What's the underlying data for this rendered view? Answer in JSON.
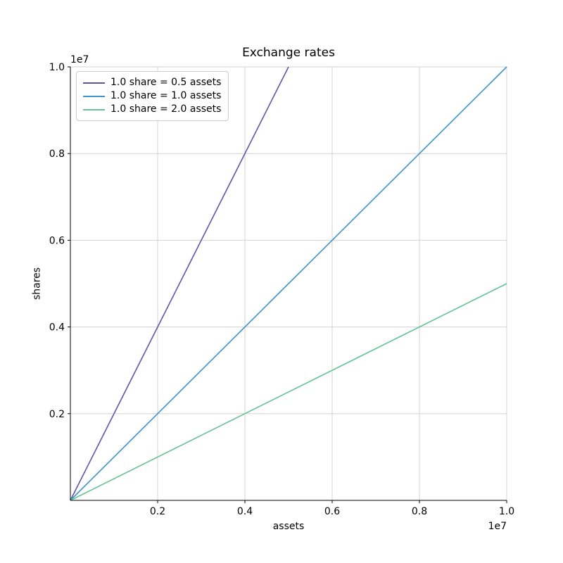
{
  "chart_data": {
    "type": "line",
    "title": "Exchange rates",
    "xlabel": "assets",
    "ylabel": "shares",
    "x_offset_label": "1e7",
    "y_offset_label": "1e7",
    "xlim": [
      0,
      10000000
    ],
    "ylim": [
      0,
      10000000
    ],
    "x_ticks": [
      2000000,
      4000000,
      6000000,
      8000000,
      10000000
    ],
    "x_tick_labels": [
      "0.2",
      "0.4",
      "0.6",
      "0.8",
      "1.0"
    ],
    "y_ticks": [
      2000000,
      4000000,
      6000000,
      8000000,
      10000000
    ],
    "y_tick_labels": [
      "0.2",
      "0.4",
      "0.6",
      "0.8",
      "1.0"
    ],
    "grid": true,
    "legend_position": "upper left",
    "series": [
      {
        "name": "1.0 share = 0.5 assets",
        "color": "#5d56a6",
        "points": [
          [
            0,
            0
          ],
          [
            5000000,
            10000000
          ]
        ]
      },
      {
        "name": "1.0 share = 1.0 assets",
        "color": "#3f93c8",
        "points": [
          [
            0,
            0
          ],
          [
            10000000,
            10000000
          ]
        ]
      },
      {
        "name": "1.0 share = 2.0 assets",
        "color": "#64c294",
        "points": [
          [
            0,
            0
          ],
          [
            10000000,
            5000000
          ]
        ]
      }
    ]
  },
  "colors": {
    "grid": "#d3d3d3",
    "spine": "#000000",
    "text": "#000000",
    "legend_border": "#cccccc"
  }
}
